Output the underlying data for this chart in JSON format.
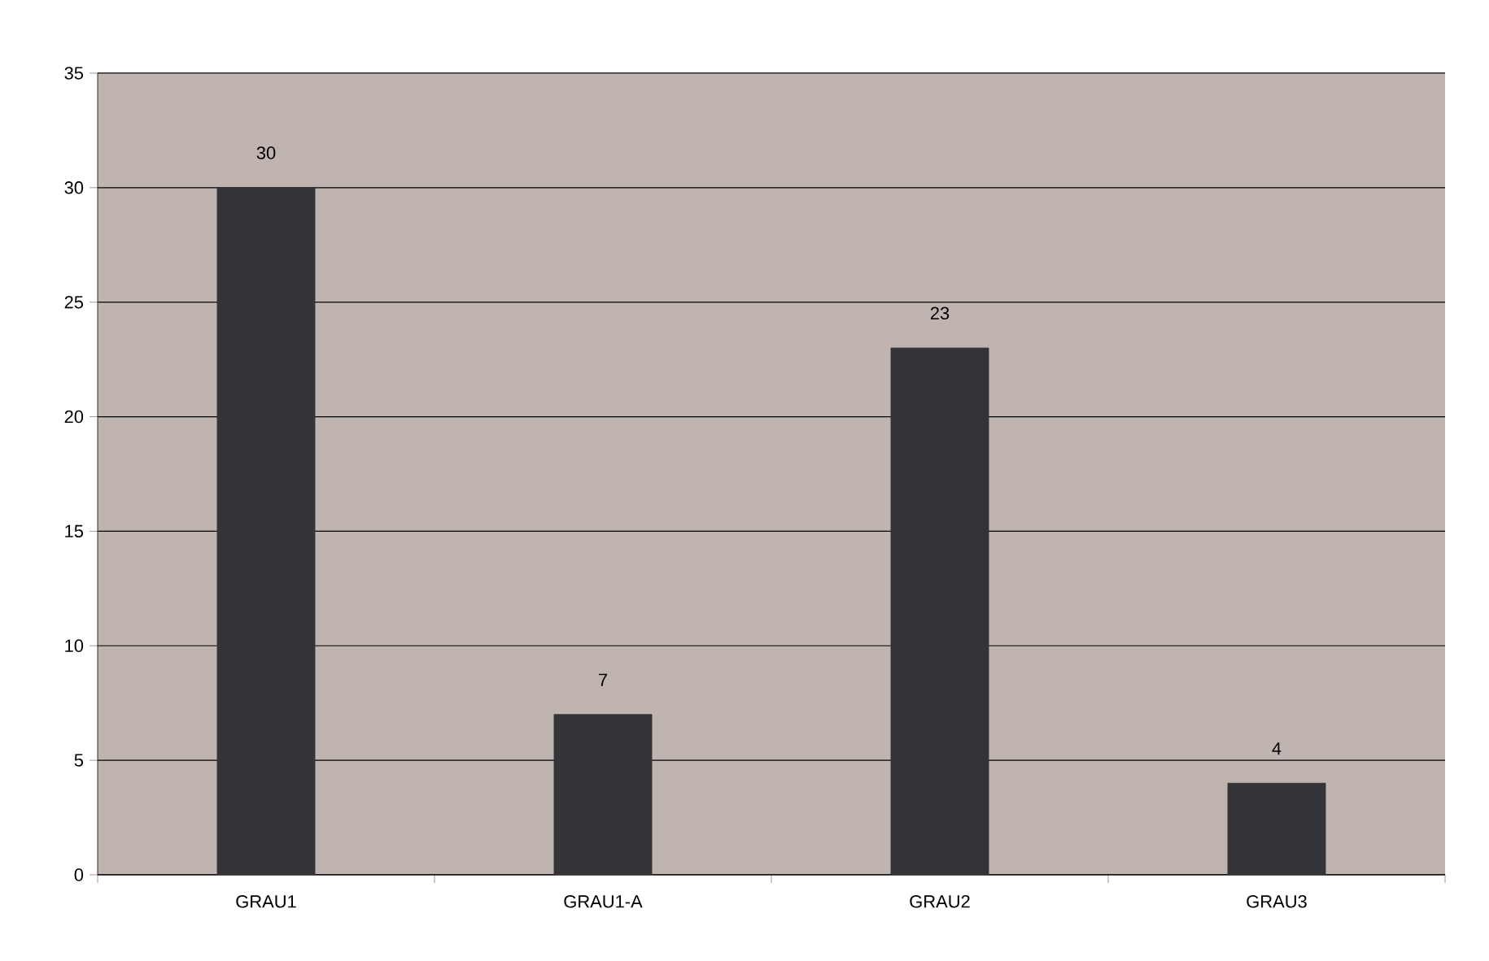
{
  "chart_data": {
    "type": "bar",
    "categories": [
      "GRAU1",
      "GRAU1-A",
      "GRAU2",
      "GRAU3"
    ],
    "values": [
      30,
      7,
      23,
      4
    ],
    "color": "#333338",
    "ylim": [
      0,
      35
    ],
    "yticks": [
      0,
      5,
      10,
      15,
      20,
      25,
      30,
      35
    ],
    "grid": "y",
    "data_labels": true
  }
}
